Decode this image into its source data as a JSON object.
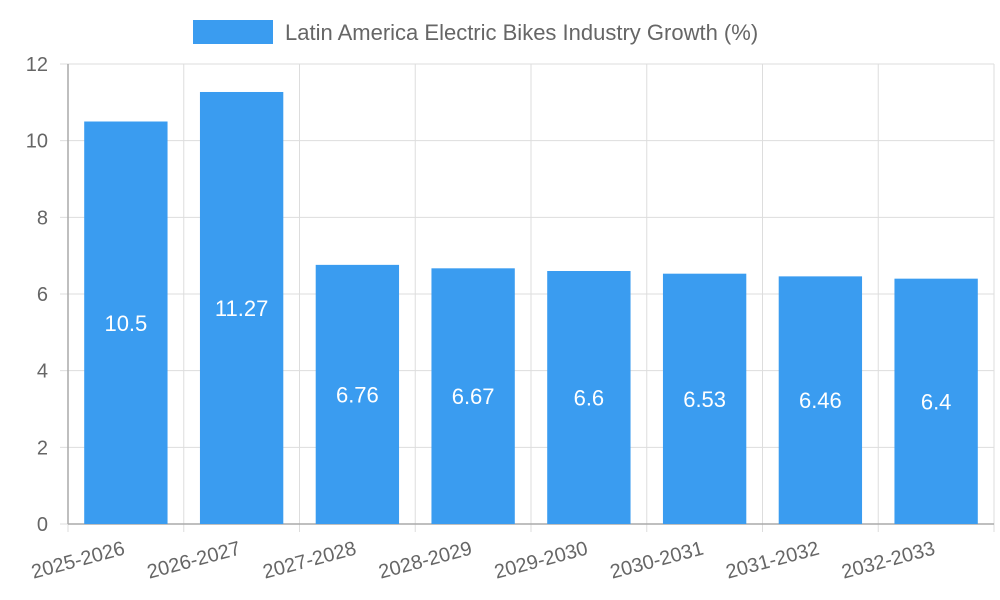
{
  "chart_data": {
    "type": "bar",
    "title": "",
    "legend": "Latin America Electric Bikes Industry Growth (%)",
    "legend_position": "top-center",
    "categories": [
      "2025-2026",
      "2026-2027",
      "2027-2028",
      "2028-2029",
      "2029-2030",
      "2030-2031",
      "2031-2032",
      "2032-2033"
    ],
    "values": [
      10.5,
      11.27,
      6.76,
      6.67,
      6.6,
      6.53,
      6.46,
      6.4
    ],
    "xlabel": "",
    "ylabel": "",
    "ylim": [
      0,
      12
    ],
    "yticks": [
      0,
      2,
      4,
      6,
      8,
      10,
      12
    ],
    "grid": true,
    "bar_color": "#3a9cf0"
  }
}
